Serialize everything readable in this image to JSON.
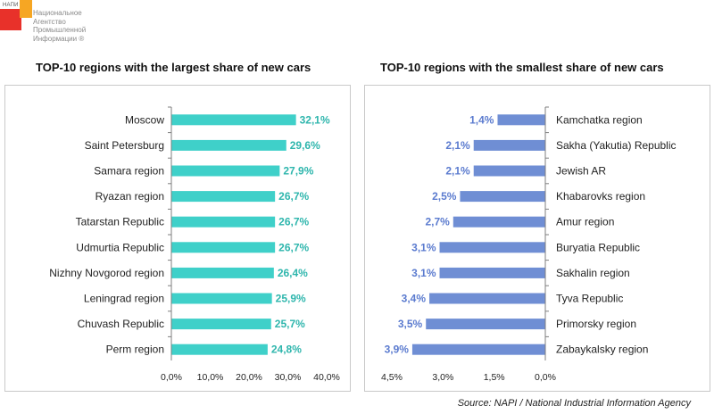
{
  "logo": {
    "abbr": "НАПИ",
    "lines": [
      "Национальное",
      "Агентство",
      "Промышленной",
      "Информации ®"
    ]
  },
  "source": "Source: NAPI / National Industrial Information Agency",
  "colors": {
    "left_bar": "#3fd0c9",
    "right_bar": "#6f8ed4",
    "left_label": "#2fb6ad",
    "right_label": "#5b7bcf"
  },
  "chart_data": [
    {
      "type": "bar",
      "orientation": "horizontal",
      "title": "TOP-10 regions with the largest share of new cars",
      "categories": [
        "Moscow",
        "Saint Petersburg",
        "Samara region",
        "Ryazan region",
        "Tatarstan Republic",
        "Udmurtia Republic",
        "Nizhny Novgorod region",
        "Leningrad region",
        "Chuvash Republic",
        "Perm region"
      ],
      "values": [
        32.1,
        29.6,
        27.9,
        26.7,
        26.7,
        26.7,
        26.4,
        25.9,
        25.7,
        24.8
      ],
      "data_labels": [
        "32,1%",
        "29,6%",
        "27,9%",
        "26,7%",
        "26,7%",
        "26,7%",
        "26,4%",
        "25,9%",
        "25,7%",
        "24,8%"
      ],
      "xlim": [
        0,
        40
      ],
      "xticks": [
        0,
        10,
        20,
        30,
        40
      ],
      "xtick_labels": [
        "0,0%",
        "10,0%",
        "20,0%",
        "30,0%",
        "40,0%"
      ],
      "grid": false,
      "legend": "none"
    },
    {
      "type": "bar",
      "orientation": "horizontal",
      "reversed_x": true,
      "title": "TOP-10 regions with the smallest share of new cars",
      "categories": [
        "Kamchatka region",
        "Sakha (Yakutia) Republic",
        "Jewish AR",
        "Khabarovks region",
        "Amur region",
        "Buryatia Republic",
        "Sakhalin region",
        "Tyva Republic",
        "Primorsky region",
        "Zabaykalsky region"
      ],
      "values": [
        1.4,
        2.1,
        2.1,
        2.5,
        2.7,
        3.1,
        3.1,
        3.4,
        3.5,
        3.9
      ],
      "data_labels": [
        "1,4%",
        "2,1%",
        "2,1%",
        "2,5%",
        "2,7%",
        "3,1%",
        "3,1%",
        "3,4%",
        "3,5%",
        "3,9%"
      ],
      "xlim": [
        0,
        4.5
      ],
      "xticks": [
        4.5,
        3.0,
        1.5,
        0.0
      ],
      "xtick_labels": [
        "4,5%",
        "3,0%",
        "1,5%",
        "0,0%"
      ],
      "grid": false,
      "legend": "none"
    }
  ]
}
